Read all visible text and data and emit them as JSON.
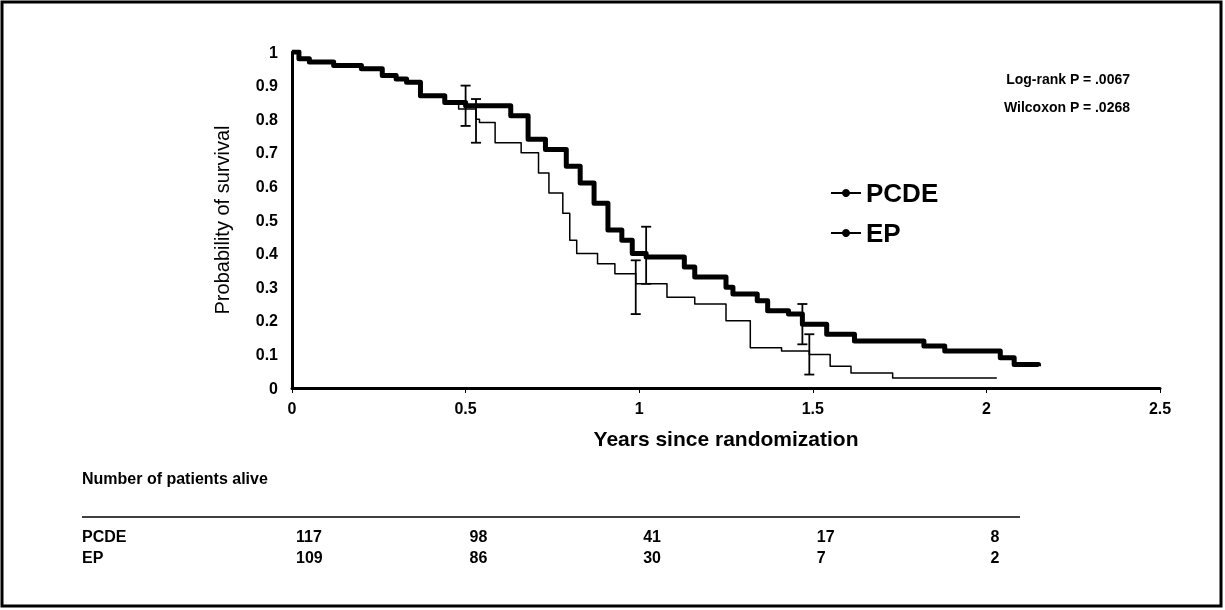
{
  "chart_data": {
    "type": "step",
    "xlabel": "Years since randomization",
    "ylabel": "Probability of survival",
    "xlim": [
      0,
      2.5
    ],
    "xticks": [
      0,
      0.5,
      1,
      1.5,
      2,
      2.5
    ],
    "ylim": [
      0,
      1
    ],
    "yticks": [
      0,
      0.1,
      0.2,
      0.3,
      0.4,
      0.5,
      0.6,
      0.7,
      0.8,
      0.9,
      1
    ],
    "grid": false,
    "legend": "right",
    "marker": "none",
    "line_style": "solid",
    "series": [
      {
        "name": "PCDE",
        "color": "#000000",
        "x": [
          0,
          0.02,
          0.05,
          0.12,
          0.2,
          0.26,
          0.3,
          0.33,
          0.37,
          0.44,
          0.5,
          0.6,
          0.63,
          0.68,
          0.73,
          0.79,
          0.83,
          0.87,
          0.91,
          0.95,
          0.98,
          1.02,
          1.13,
          1.16,
          1.25,
          1.27,
          1.34,
          1.37,
          1.43,
          1.47,
          1.54,
          1.62,
          1.82,
          1.88,
          2.01,
          2.04,
          2.08,
          2.15
        ],
        "values": [
          1,
          0.98,
          0.97,
          0.96,
          0.95,
          0.93,
          0.92,
          0.91,
          0.87,
          0.85,
          0.84,
          0.84,
          0.81,
          0.74,
          0.71,
          0.66,
          0.61,
          0.55,
          0.47,
          0.44,
          0.4,
          0.39,
          0.36,
          0.33,
          0.3,
          0.28,
          0.26,
          0.23,
          0.22,
          0.19,
          0.16,
          0.14,
          0.125,
          0.11,
          0.11,
          0.09,
          0.07,
          0.065
        ],
        "errors": [
          null,
          null,
          null,
          null,
          null,
          null,
          null,
          null,
          null,
          null,
          [
            0.78,
            0.9
          ],
          null,
          null,
          null,
          null,
          null,
          null,
          null,
          null,
          null,
          null,
          [
            0.31,
            0.48
          ],
          null,
          null,
          null,
          null,
          null,
          null,
          null,
          [
            0.13,
            0.25
          ],
          null,
          null,
          null,
          null,
          null,
          null,
          null,
          null
        ]
      },
      {
        "name": "EP",
        "color": "#000000",
        "x": [
          0,
          0.02,
          0.05,
          0.12,
          0.2,
          0.26,
          0.3,
          0.33,
          0.37,
          0.44,
          0.48,
          0.53,
          0.54,
          0.585,
          0.66,
          0.71,
          0.74,
          0.78,
          0.8,
          0.82,
          0.88,
          0.93,
          0.99,
          1.08,
          1.16,
          1.25,
          1.32,
          1.41,
          1.49,
          1.55,
          1.61,
          1.73,
          2.03
        ],
        "values": [
          1,
          0.98,
          0.97,
          0.96,
          0.95,
          0.93,
          0.92,
          0.91,
          0.87,
          0.85,
          0.83,
          0.8,
          0.79,
          0.73,
          0.7,
          0.64,
          0.58,
          0.52,
          0.44,
          0.4,
          0.37,
          0.34,
          0.31,
          0.27,
          0.25,
          0.2,
          0.12,
          0.11,
          0.1,
          0.065,
          0.045,
          0.03,
          0.03
        ],
        "errors": [
          null,
          null,
          null,
          null,
          null,
          null,
          null,
          null,
          null,
          null,
          null,
          [
            0.73,
            0.86
          ],
          null,
          null,
          null,
          null,
          null,
          null,
          null,
          null,
          null,
          null,
          [
            0.22,
            0.38
          ],
          null,
          null,
          null,
          null,
          null,
          [
            0.04,
            0.16
          ],
          null,
          null,
          null,
          null
        ]
      }
    ],
    "annotations": [
      "Log-rank P = .0067",
      "Wilcoxon P = .0268",
      "Number of patients alive",
      "117",
      "98",
      "41",
      "17",
      "8",
      "109",
      "86",
      "30",
      "7",
      "2"
    ]
  }
}
